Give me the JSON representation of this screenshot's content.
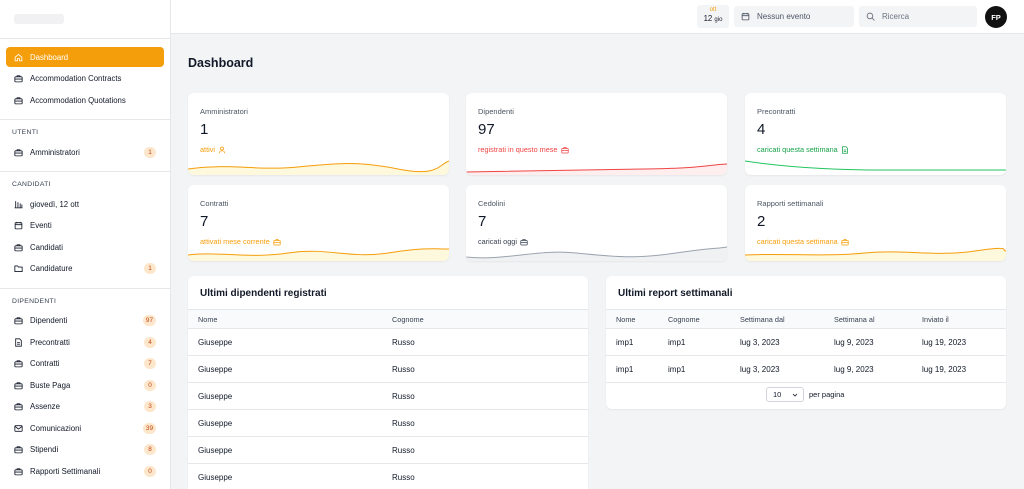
{
  "sidebar": {
    "items_top": [
      {
        "label": "Dashboard",
        "icon": "home-icon",
        "active": true
      },
      {
        "label": "Accommodation Contracts",
        "icon": "briefcase-icon"
      },
      {
        "label": "Accommodation Quotations",
        "icon": "briefcase-icon"
      }
    ],
    "section_utenti": "UTENTI",
    "items_utenti": [
      {
        "label": "Amministratori",
        "icon": "briefcase-icon",
        "badge": "1"
      }
    ],
    "section_candidati": "CANDIDATI",
    "items_candidati": [
      {
        "label": "giovedì, 12 ott",
        "icon": "calendar-grid-icon"
      },
      {
        "label": "Eventi",
        "icon": "calendar-icon"
      },
      {
        "label": "Candidati",
        "icon": "briefcase-icon"
      },
      {
        "label": "Candidature",
        "icon": "folder-icon",
        "badge": "1"
      }
    ],
    "section_dipendenti": "DIPENDENTI",
    "items_dipendenti": [
      {
        "label": "Dipendenti",
        "icon": "briefcase-icon",
        "badge": "97"
      },
      {
        "label": "Precontratti",
        "icon": "document-icon",
        "badge": "4"
      },
      {
        "label": "Contratti",
        "icon": "briefcase-icon",
        "badge": "7"
      },
      {
        "label": "Buste Paga",
        "icon": "briefcase-icon",
        "badge": "0"
      },
      {
        "label": "Assenze",
        "icon": "briefcase-icon",
        "badge": "3"
      },
      {
        "label": "Comunicazioni",
        "icon": "mail-icon",
        "badge": "39"
      },
      {
        "label": "Stipendi",
        "icon": "briefcase-icon",
        "badge": "8"
      },
      {
        "label": "Rapporti Settimanali",
        "icon": "briefcase-icon",
        "badge": "0"
      }
    ]
  },
  "topbar": {
    "date_month": "ott",
    "date_day": "12",
    "date_weekday": "gio",
    "event_text": "Nessun evento",
    "search_placeholder": "Ricerca",
    "avatar_initials": "FP"
  },
  "page_title": "Dashboard",
  "colors": {
    "accent": "#f59e0b",
    "red": "#ef4444",
    "green": "#22c55e",
    "gray": "#9ca3af"
  },
  "stats": [
    {
      "label": "Amministratori",
      "value": "1",
      "sub": "attivi",
      "color": "#f59e0b",
      "icon": "user-icon"
    },
    {
      "label": "Dipendenti",
      "value": "97",
      "sub": "registrati in questo mese",
      "color": "#ef4444",
      "icon": "briefcase-icon"
    },
    {
      "label": "Precontratti",
      "value": "4",
      "sub": "caricati questa settimana",
      "color": "#16a34a",
      "icon": "document-icon"
    },
    {
      "label": "Contratti",
      "value": "7",
      "sub": "attivati mese corrente",
      "color": "#f59e0b",
      "icon": "briefcase-icon"
    },
    {
      "label": "Cedolini",
      "value": "7",
      "sub": "caricati oggi",
      "color": "#374151",
      "icon": "briefcase-icon"
    },
    {
      "label": "Rapporti settimanali",
      "value": "2",
      "sub": "caricati questa settimana",
      "color": "#f59e0b",
      "icon": "briefcase-icon"
    }
  ],
  "employees_panel": {
    "title": "Ultimi dipendenti registrati",
    "columns": [
      "Nome",
      "Cognome"
    ],
    "rows": [
      [
        "Giuseppe",
        "Russo"
      ],
      [
        "Giuseppe",
        "Russo"
      ],
      [
        "Giuseppe",
        "Russo"
      ],
      [
        "Giuseppe",
        "Russo"
      ],
      [
        "Giuseppe",
        "Russo"
      ],
      [
        "Giuseppe",
        "Russo"
      ]
    ]
  },
  "reports_panel": {
    "title": "Ultimi report settimanali",
    "columns": [
      "Nome",
      "Cognome",
      "Settimana dal",
      "Settimana al",
      "Inviato il"
    ],
    "rows": [
      [
        "imp1",
        "imp1",
        "lug 3, 2023",
        "lug 9, 2023",
        "lug 19, 2023"
      ],
      [
        "imp1",
        "imp1",
        "lug 3, 2023",
        "lug 9, 2023",
        "lug 19, 2023"
      ]
    ],
    "page_size": "10",
    "page_size_label": "per pagina"
  }
}
